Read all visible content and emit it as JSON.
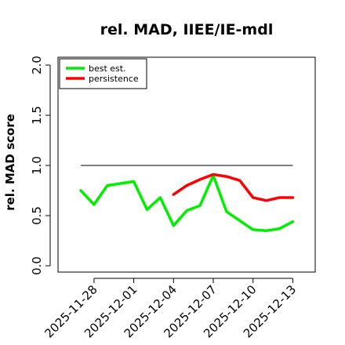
{
  "chart_data": {
    "type": "line",
    "title": "rel. MAD, IIEE/IE-mdl",
    "ylabel": "rel. MAD score",
    "xlabel": "",
    "ylim": [
      0,
      2
    ],
    "yticks": [
      "0.0",
      "0.5",
      "1.0",
      "1.5",
      "2.0"
    ],
    "x": [
      "2025-11-27",
      "2025-11-28",
      "2025-11-29",
      "2025-11-30",
      "2025-12-01",
      "2025-12-02",
      "2025-12-03",
      "2025-12-04",
      "2025-12-05",
      "2025-12-06",
      "2025-12-07",
      "2025-12-08",
      "2025-12-09",
      "2025-12-10",
      "2025-12-11",
      "2025-12-12",
      "2025-12-13"
    ],
    "xtick_labels": [
      "2025-11-28",
      "2025-12-01",
      "2025-12-04",
      "2025-12-07",
      "2025-12-10",
      "2025-12-13"
    ],
    "reference_line": 1.0,
    "series": [
      {
        "name": "best est.",
        "color": "#00ee00",
        "values": [
          0.75,
          0.61,
          0.8,
          0.82,
          0.84,
          0.56,
          0.68,
          0.4,
          0.55,
          0.6,
          0.9,
          0.54,
          0.45,
          0.36,
          0.35,
          0.37,
          0.44
        ]
      },
      {
        "name": "persistence",
        "color": "#ff0000",
        "values": [
          null,
          null,
          null,
          null,
          null,
          null,
          null,
          0.71,
          0.8,
          0.86,
          0.91,
          0.89,
          0.85,
          0.68,
          0.65,
          0.68,
          0.68
        ]
      }
    ],
    "legend": "top-left",
    "grid": false
  }
}
